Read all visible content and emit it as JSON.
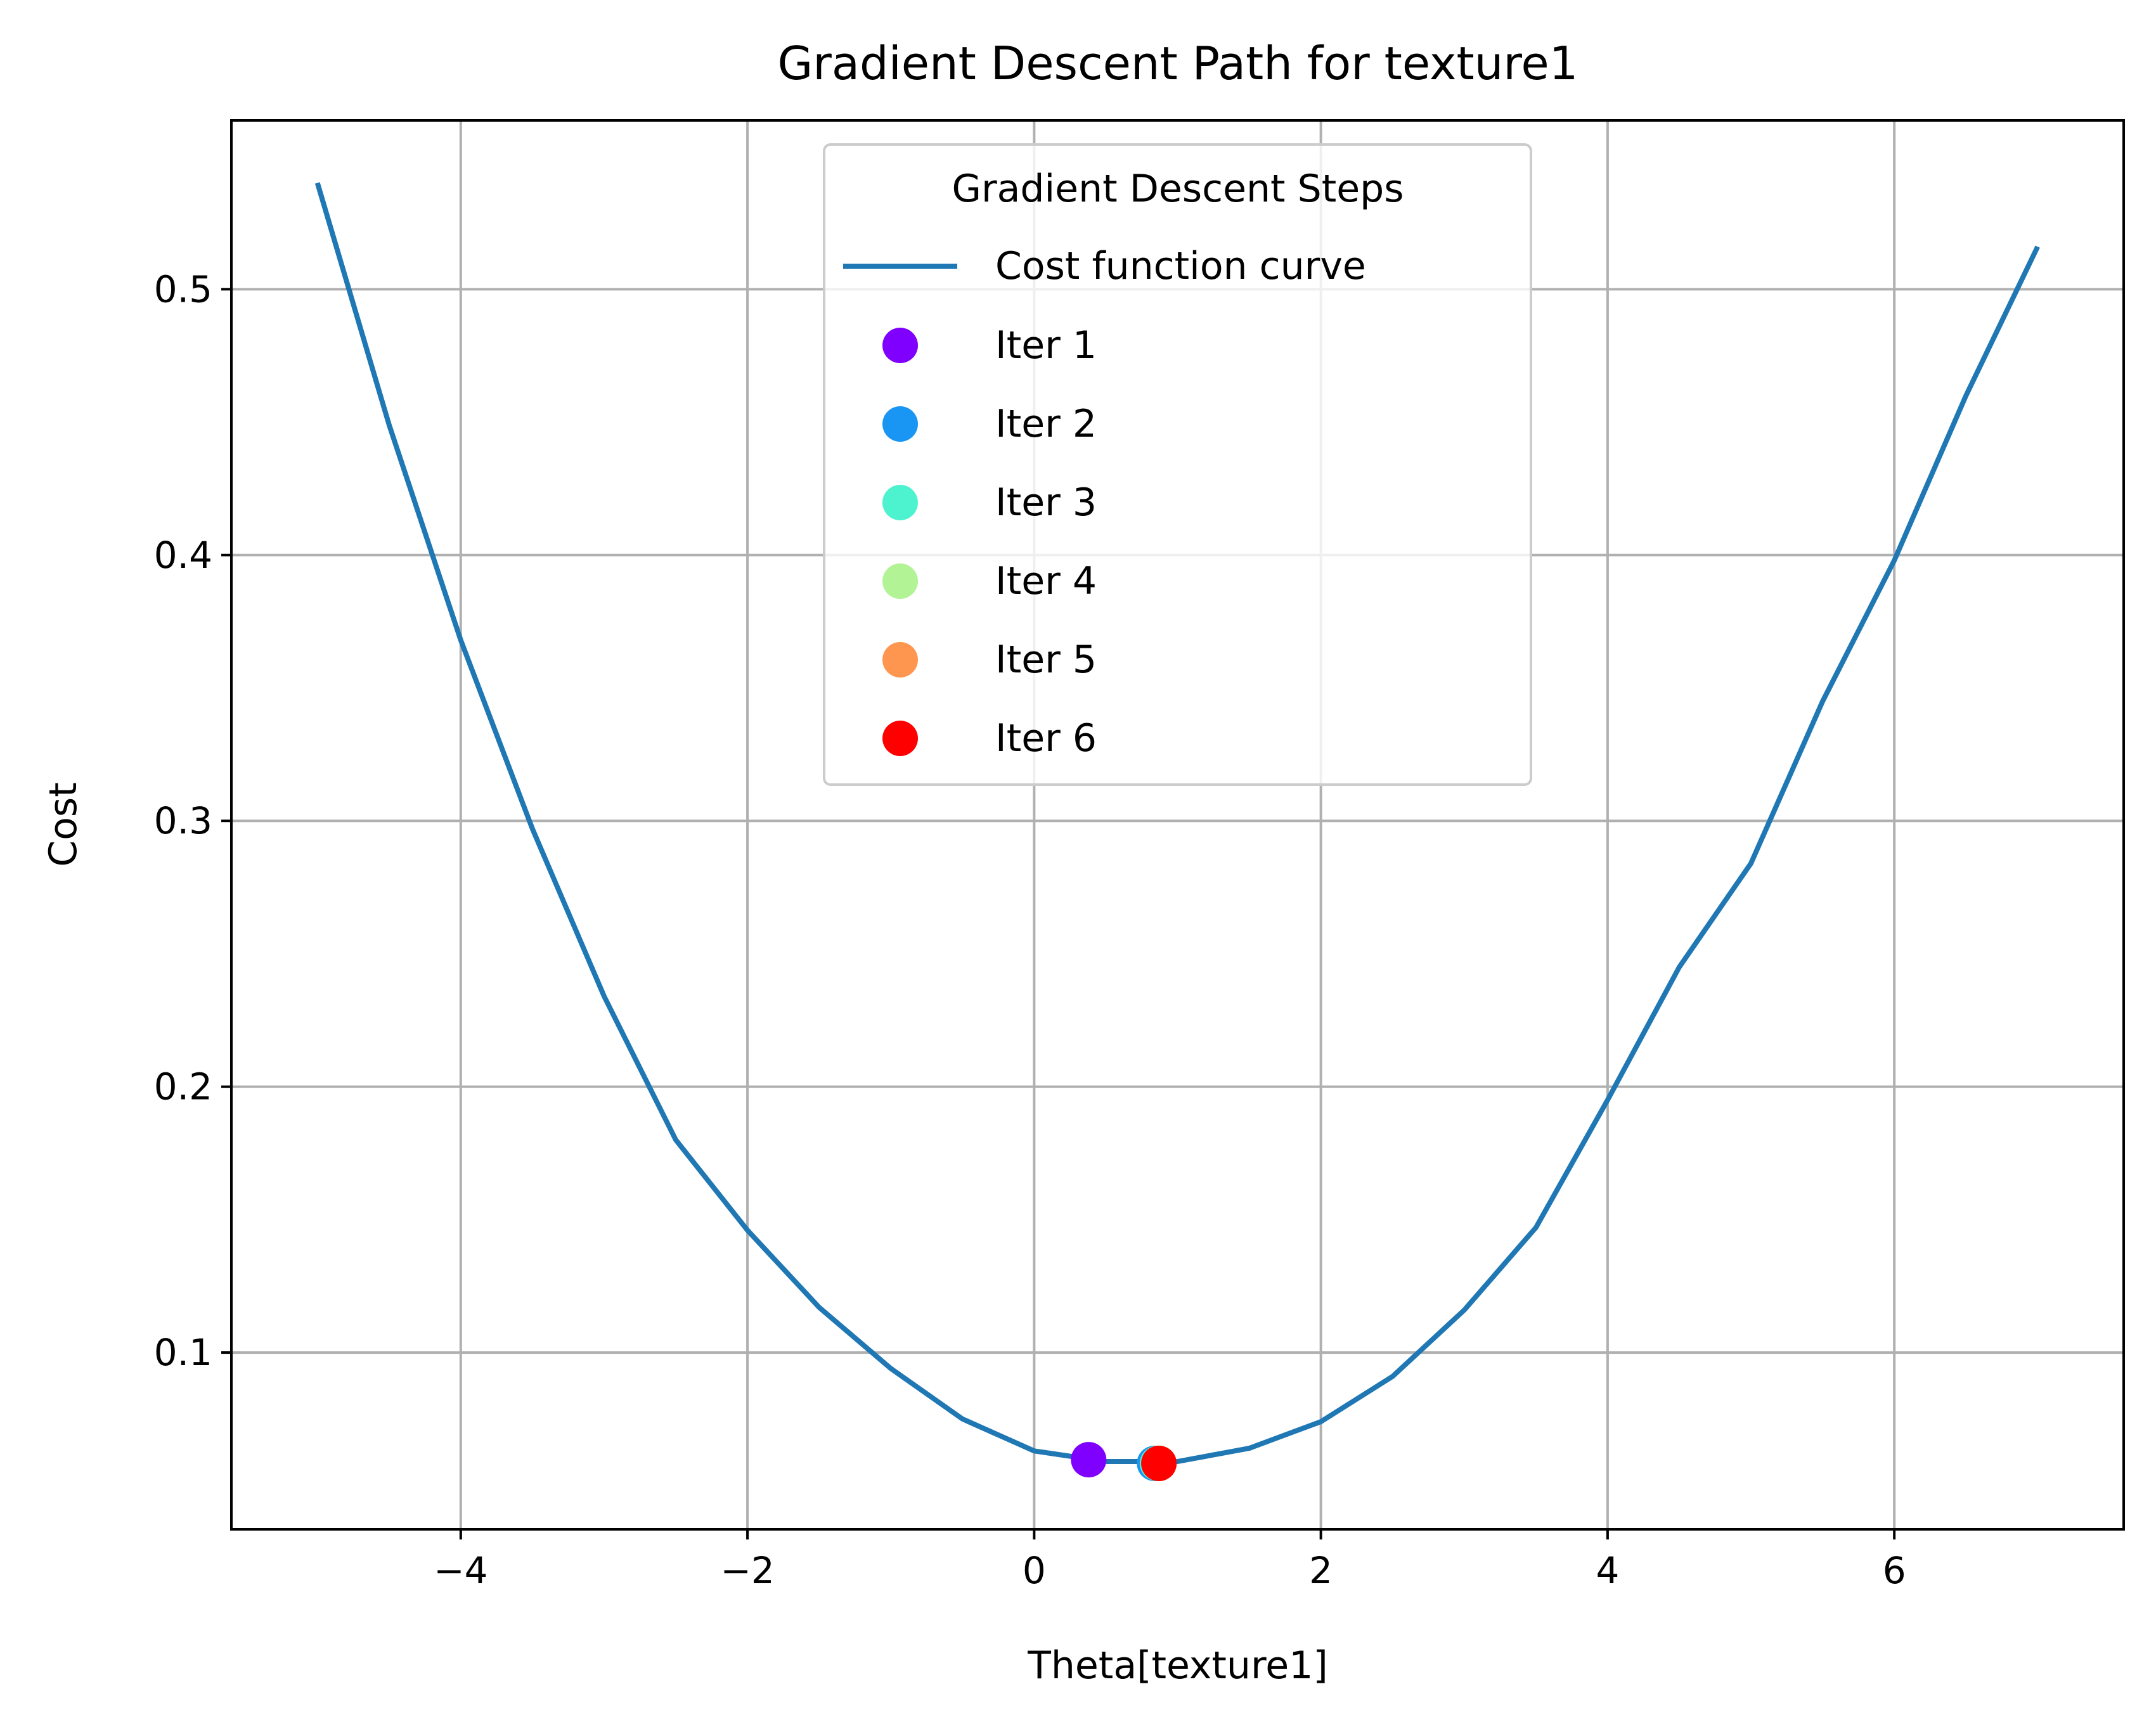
{
  "chart_data": {
    "type": "line",
    "title": "Gradient Descent Path for texture1",
    "xlabel": "Theta[texture1]",
    "ylabel": "Cost",
    "xlim": [
      -5.6,
      7.6
    ],
    "ylim": [
      0.0335,
      0.5635
    ],
    "x_ticks": [
      -4,
      -2,
      0,
      2,
      4,
      6
    ],
    "x_tick_labels": [
      "−4",
      "−2",
      "0",
      "2",
      "4",
      "6"
    ],
    "y_ticks": [
      0.1,
      0.2,
      0.3,
      0.4,
      0.5
    ],
    "y_tick_labels": [
      "0.1",
      "0.2",
      "0.3",
      "0.4",
      "0.5"
    ],
    "grid": true,
    "legend": {
      "title": "Gradient Descent Steps",
      "placement": "upper center"
    },
    "curve": {
      "name": "Cost function curve",
      "color": "#1f77b4",
      "x": [
        -5,
        -4.5,
        -4,
        -3.5,
        -3,
        -2.5,
        -2,
        -1.5,
        -1,
        -0.5,
        0,
        0.5,
        1,
        1.5,
        2,
        2.5,
        3,
        3.5,
        4,
        4.5,
        5,
        5.5,
        6,
        6.5,
        7
      ],
      "y": [
        0.54,
        0.449,
        0.368,
        0.297,
        0.234,
        0.18,
        0.146,
        0.117,
        0.094,
        0.075,
        0.063,
        0.059,
        0.059,
        0.064,
        0.074,
        0.091,
        0.116,
        0.147,
        0.195,
        0.245,
        0.284,
        0.345,
        0.398,
        0.46,
        0.516
      ]
    },
    "series": [
      {
        "name": "Iter 1",
        "x": 0.38,
        "y": 0.0597,
        "color": "#8000ff"
      },
      {
        "name": "Iter 2",
        "x": 0.84,
        "y": 0.0583,
        "color": "#1996f3"
      },
      {
        "name": "Iter 3",
        "x": 0.86,
        "y": 0.0583,
        "color": "#4df3ce"
      },
      {
        "name": "Iter 4",
        "x": 0.87,
        "y": 0.0583,
        "color": "#b2f396"
      },
      {
        "name": "Iter 5",
        "x": 0.87,
        "y": 0.0583,
        "color": "#ff964f"
      },
      {
        "name": "Iter 6",
        "x": 0.87,
        "y": 0.0583,
        "color": "#ff0000"
      }
    ]
  }
}
